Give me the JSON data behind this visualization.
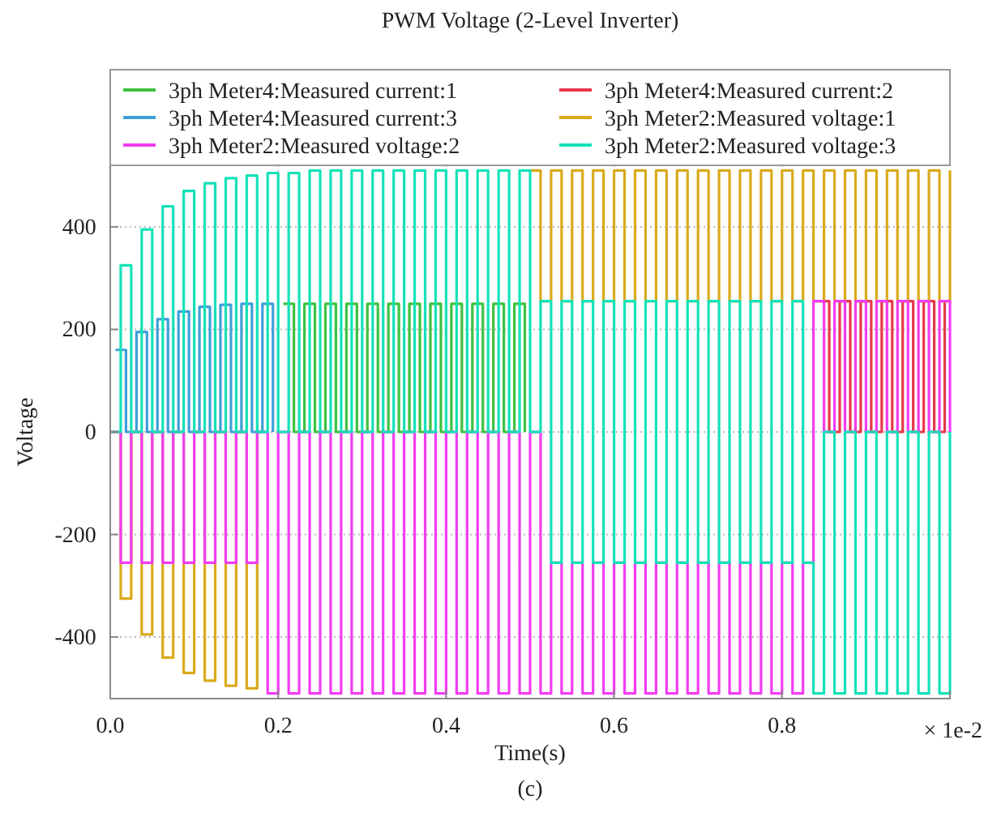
{
  "chart_data": {
    "type": "step",
    "title": "PWM Voltage (2-Level Inverter)",
    "xlabel": "Time(s)",
    "ylabel": "Voltage",
    "legend": "top",
    "grid": true,
    "xlim": [
      0,
      1.0
    ],
    "xticks": [
      {
        "value": 0,
        "label": "0.0"
      },
      0.2,
      0.4,
      0.6,
      0.8
    ],
    "ylim": [
      -520,
      520
    ],
    "yticks": [
      -400,
      -200,
      0,
      200,
      400
    ],
    "annotations": [
      "× 1e-2",
      "(c)"
    ],
    "x": [
      0,
      0.0125,
      0.025,
      0.0375,
      0.05,
      0.0625,
      0.075,
      0.0875,
      0.1,
      0.1125,
      0.125,
      0.1375,
      0.15,
      0.1625,
      0.175,
      0.1875,
      0.2,
      0.2125,
      0.225,
      0.2375,
      0.25,
      0.2625,
      0.275,
      0.2875,
      0.3,
      0.3125,
      0.325,
      0.3375,
      0.35,
      0.3625,
      0.375,
      0.3875,
      0.4,
      0.4125,
      0.425,
      0.4375,
      0.45,
      0.4625,
      0.475,
      0.4875,
      0.5,
      0.5125,
      0.525,
      0.5375,
      0.55,
      0.5625,
      0.575,
      0.5875,
      0.6,
      0.6125,
      0.625,
      0.6375,
      0.65,
      0.6625,
      0.675,
      0.6875,
      0.7,
      0.7125,
      0.725,
      0.7375,
      0.75,
      0.7625,
      0.775,
      0.7875,
      0.8,
      0.8125,
      0.825,
      0.8375,
      0.85,
      0.8625,
      0.875,
      0.8875,
      0.9,
      0.9125,
      0.925,
      0.9375,
      0.95,
      0.9625,
      0.975,
      0.9875,
      1.0
    ],
    "series": [
      {
        "name": "3ph Meter4:Measured current:1",
        "color": "#3ec13e",
        "x": [
          0.20625,
          0.21875,
          0.23125,
          0.24375,
          0.25625,
          0.26875,
          0.28125,
          0.29375,
          0.30625,
          0.31875,
          0.33125,
          0.34375,
          0.35625,
          0.36875,
          0.38125,
          0.39375,
          0.40625,
          0.41875,
          0.43125,
          0.44375,
          0.45625,
          0.46875,
          0.48125,
          0.49375
        ],
        "values": [
          250,
          0,
          250,
          0,
          250,
          0,
          250,
          0,
          250,
          0,
          250,
          0,
          250,
          0,
          250,
          0,
          250,
          0,
          250,
          0,
          250,
          0,
          250,
          0
        ]
      },
      {
        "name": "3ph Meter4:Measured current:2",
        "color": "#e8374a",
        "x": [
          0.84375,
          0.85625,
          0.86875,
          0.88125,
          0.89375,
          0.90625,
          0.91875,
          0.93125,
          0.94375,
          0.95625,
          0.96875,
          0.98125,
          0.99375
        ],
        "values": [
          255,
          0,
          255,
          0,
          255,
          0,
          255,
          0,
          255,
          0,
          255,
          0,
          255
        ]
      },
      {
        "name": "3ph Meter4:Measured current:3",
        "color": "#3f9fd8",
        "x": [
          0.00625,
          0.01875,
          0.03125,
          0.04375,
          0.05625,
          0.06875,
          0.08125,
          0.09375,
          0.10625,
          0.11875,
          0.13125,
          0.14375,
          0.15625,
          0.16875,
          0.18125,
          0.19375
        ],
        "values": [
          160,
          0,
          195,
          0,
          220,
          0,
          235,
          0,
          244,
          0,
          248,
          0,
          250,
          0,
          250,
          0
        ]
      },
      {
        "name": "3ph Meter2:Measured voltage:1",
        "color": "#d9aa1b",
        "values": [
          0,
          -325,
          0,
          -395,
          0,
          -440,
          0,
          -470,
          0,
          -485,
          0,
          -495,
          0,
          -500,
          0,
          null,
          null,
          null,
          null,
          null,
          null,
          null,
          null,
          null,
          null,
          null,
          null,
          null,
          null,
          null,
          null,
          null,
          null,
          null,
          null,
          null,
          null,
          null,
          null,
          null,
          510,
          255,
          510,
          255,
          510,
          255,
          510,
          255,
          510,
          255,
          510,
          255,
          510,
          255,
          510,
          255,
          510,
          255,
          510,
          255,
          510,
          255,
          510,
          255,
          510,
          255,
          510,
          255,
          510,
          255,
          510,
          255,
          510,
          255,
          510,
          255,
          510,
          255,
          510,
          255,
          510
        ]
      },
      {
        "name": "3ph Meter2:Measured voltage:2",
        "color": "#f23cf2",
        "values": [
          0,
          -255,
          0,
          -255,
          0,
          -255,
          0,
          -255,
          0,
          -255,
          0,
          -255,
          0,
          -255,
          0,
          -510,
          0,
          -510,
          0,
          -510,
          0,
          -510,
          0,
          -510,
          0,
          -510,
          0,
          -510,
          0,
          -510,
          0,
          -510,
          0,
          -510,
          0,
          -510,
          0,
          -510,
          0,
          -510,
          0,
          -510,
          -255,
          -510,
          -255,
          -510,
          -255,
          -510,
          -255,
          -510,
          -255,
          -510,
          -255,
          -510,
          -255,
          -510,
          -255,
          -510,
          -255,
          -510,
          -255,
          -510,
          -255,
          -510,
          -255,
          -510,
          -255,
          255,
          0,
          255,
          0,
          255,
          0,
          255,
          0,
          255,
          0,
          255,
          0,
          255,
          0
        ]
      },
      {
        "name": "3ph Meter2:Measured voltage:3",
        "color": "#14e2b8",
        "values": [
          0,
          325,
          0,
          395,
          0,
          440,
          0,
          470,
          0,
          485,
          0,
          495,
          0,
          500,
          0,
          505,
          0,
          505,
          0,
          510,
          0,
          510,
          0,
          510,
          0,
          510,
          0,
          510,
          0,
          510,
          0,
          510,
          0,
          510,
          0,
          510,
          0,
          510,
          0,
          510,
          0,
          255,
          -255,
          255,
          -255,
          255,
          -255,
          255,
          -255,
          255,
          -255,
          255,
          -255,
          255,
          -255,
          255,
          -255,
          255,
          -255,
          255,
          -255,
          255,
          -255,
          255,
          -255,
          255,
          -255,
          -510,
          0,
          -510,
          0,
          -510,
          0,
          -510,
          0,
          -510,
          0,
          -510,
          0,
          -510,
          0
        ]
      }
    ]
  }
}
